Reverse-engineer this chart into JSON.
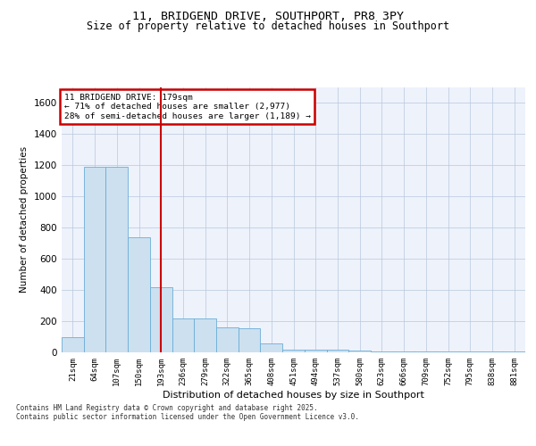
{
  "title_line1": "11, BRIDGEND DRIVE, SOUTHPORT, PR8 3PY",
  "title_line2": "Size of property relative to detached houses in Southport",
  "xlabel": "Distribution of detached houses by size in Southport",
  "ylabel": "Number of detached properties",
  "footnote1": "Contains HM Land Registry data © Crown copyright and database right 2025.",
  "footnote2": "Contains public sector information licensed under the Open Government Licence v3.0.",
  "annotation_line1": "11 BRIDGEND DRIVE: 179sqm",
  "annotation_line2": "← 71% of detached houses are smaller (2,977)",
  "annotation_line3": "28% of semi-detached houses are larger (1,189) →",
  "vline_color": "#cc0000",
  "annotation_box_color": "#cc0000",
  "bar_color": "#cce0f0",
  "bar_edge_color": "#6baed6",
  "background_color": "#eef2fb",
  "grid_color": "#b8c8dc",
  "ylim": [
    0,
    1700
  ],
  "yticks": [
    0,
    200,
    400,
    600,
    800,
    1000,
    1200,
    1400,
    1600
  ],
  "categories": [
    "21sqm",
    "64sqm",
    "107sqm",
    "150sqm",
    "193sqm",
    "236sqm",
    "279sqm",
    "322sqm",
    "365sqm",
    "408sqm",
    "451sqm",
    "494sqm",
    "537sqm",
    "580sqm",
    "623sqm",
    "666sqm",
    "709sqm",
    "752sqm",
    "795sqm",
    "838sqm",
    "881sqm"
  ],
  "values": [
    100,
    1190,
    1190,
    740,
    415,
    215,
    215,
    160,
    155,
    60,
    20,
    20,
    20,
    10,
    5,
    5,
    5,
    5,
    5,
    5,
    5
  ]
}
